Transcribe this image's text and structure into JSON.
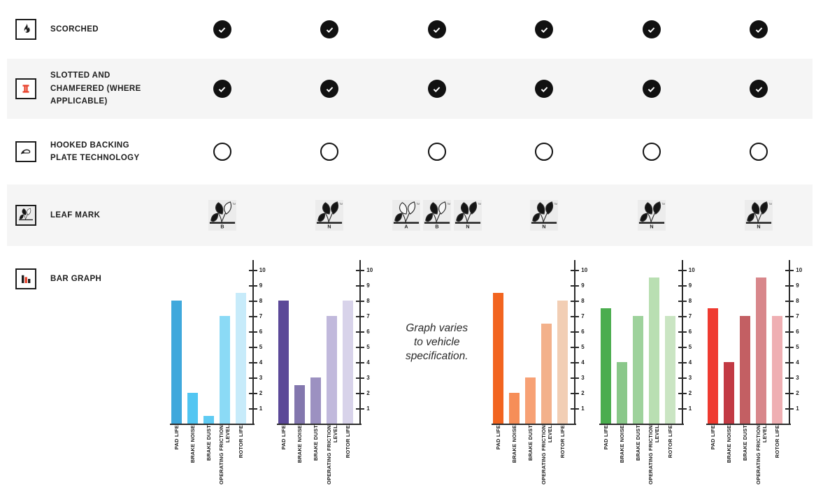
{
  "colors": {
    "row_stripe": "#f5f5f5",
    "ink": "#1d1d1d",
    "badge_black": "#111111",
    "accent_red": "#e8402a",
    "axis": "#2b2b2b",
    "leaf_bg": "#ececec"
  },
  "rows": [
    {
      "id": "scorched",
      "label": "SCORCHED",
      "icon": "flame-icon",
      "cell_type": "check",
      "cells": [
        true,
        true,
        true,
        true,
        true,
        true
      ]
    },
    {
      "id": "slotted",
      "label": "SLOTTED AND CHAMFERED (WHERE APPLICABLE)",
      "icon": "slotted-rotor-icon",
      "cell_type": "check",
      "cells": [
        true,
        true,
        true,
        true,
        true,
        true
      ]
    },
    {
      "id": "hooked",
      "label": "HOOKED BACKING PLATE TECHNOLOGY",
      "icon": "hooked-plate-icon",
      "cell_type": "circle",
      "cells": [
        false,
        false,
        false,
        false,
        false,
        false
      ]
    },
    {
      "id": "leaf-mark",
      "label": "LEAF MARK",
      "icon": "leaf-icon",
      "cell_type": "leaf",
      "cells": [
        [
          "B"
        ],
        [
          "N"
        ],
        [
          "A",
          "B",
          "N"
        ],
        [
          "N"
        ],
        [
          "N"
        ],
        [
          "N"
        ]
      ],
      "tm": "TM"
    },
    {
      "id": "bar-graph",
      "label": "BAR GRAPH",
      "icon": "bar-graph-icon",
      "cell_type": "chart"
    }
  ],
  "chart_data": [
    {
      "type": "bar",
      "palette": "blue",
      "categories": [
        "PAD LIFE",
        "BRAKE NOISE",
        "BRAKE DUST",
        "OPERATING FRICTION LEVEL",
        "ROTOR LIFE"
      ],
      "category_lines": [
        [
          "PAD LIFE"
        ],
        [
          "BRAKE NOISE"
        ],
        [
          "BRAKE DUST"
        ],
        [
          "OPERATING FRICTION",
          "LEVEL"
        ],
        [
          "ROTOR LIFE"
        ]
      ],
      "values": [
        8,
        2,
        0.5,
        7,
        8.5
      ],
      "colors": [
        "#3FA8DC",
        "#52C6F2",
        "#5FCBF3",
        "#8BDAF6",
        "#C7EBFA"
      ],
      "ylim": [
        0,
        10
      ],
      "yticks": [
        "1",
        "2",
        "3",
        "4",
        "5",
        "6",
        "7",
        "8",
        "9",
        "10"
      ],
      "grid": false,
      "legend": "none"
    },
    {
      "type": "bar",
      "palette": "purple",
      "categories": [
        "PAD LIFE",
        "BRAKE NOISE",
        "BRAKE DUST",
        "OPERATING FRICTION LEVEL",
        "ROTOR LIFE"
      ],
      "category_lines": [
        [
          "PAD LIFE"
        ],
        [
          "BRAKE NOISE"
        ],
        [
          "BRAKE DUST"
        ],
        [
          "OPERATING FRICTION",
          "LEVEL"
        ],
        [
          "ROTOR LIFE"
        ]
      ],
      "values": [
        8,
        2.5,
        3,
        7,
        8
      ],
      "colors": [
        "#5B4898",
        "#8377AE",
        "#9C91C1",
        "#C1B9DC",
        "#D8D3EA"
      ],
      "ylim": [
        0,
        10
      ],
      "yticks": [
        "1",
        "2",
        "3",
        "4",
        "5",
        "6",
        "7",
        "8",
        "9",
        "10"
      ],
      "grid": false,
      "legend": "none"
    },
    {
      "type": "note",
      "note_lines": [
        "Graph varies",
        "to vehicle",
        "specification."
      ]
    },
    {
      "type": "bar",
      "palette": "orange",
      "categories": [
        "PAD LIFE",
        "BRAKE NOISE",
        "BRAKE DUST",
        "OPERATING FRICTION LEVEL",
        "ROTOR LIFE"
      ],
      "category_lines": [
        [
          "PAD LIFE"
        ],
        [
          "BRAKE NOISE"
        ],
        [
          "BRAKE DUST"
        ],
        [
          "OPERATING FRICTION",
          "LEVEL"
        ],
        [
          "ROTOR LIFE"
        ]
      ],
      "values": [
        8.5,
        2,
        3,
        6.5,
        8
      ],
      "colors": [
        "#F2641F",
        "#F68E58",
        "#F7A175",
        "#F3B18B",
        "#F2CEB4"
      ],
      "ylim": [
        0,
        10
      ],
      "yticks": [
        "1",
        "2",
        "3",
        "4",
        "5",
        "6",
        "7",
        "8",
        "9",
        "10"
      ],
      "grid": false,
      "legend": "none"
    },
    {
      "type": "bar",
      "palette": "green",
      "categories": [
        "PAD LIFE",
        "BRAKE NOISE",
        "BRAKE DUST",
        "OPERATING FRICTION LEVEL",
        "ROTOR LIFE"
      ],
      "category_lines": [
        [
          "PAD LIFE"
        ],
        [
          "BRAKE NOISE"
        ],
        [
          "BRAKE DUST"
        ],
        [
          "OPERATING FRICTION",
          "LEVEL"
        ],
        [
          "ROTOR LIFE"
        ]
      ],
      "values": [
        7.5,
        4,
        7,
        9.5,
        7
      ],
      "colors": [
        "#4BAD4F",
        "#8AC88A",
        "#9ED29C",
        "#B9DFB2",
        "#CAE5C3"
      ],
      "ylim": [
        0,
        10
      ],
      "yticks": [
        "1",
        "2",
        "3",
        "4",
        "5",
        "6",
        "7",
        "8",
        "9",
        "10"
      ],
      "grid": false,
      "legend": "none"
    },
    {
      "type": "bar",
      "palette": "red",
      "categories": [
        "PAD LIFE",
        "BRAKE NOISE",
        "BRAKE DUST",
        "OPERATING FRICTION LEVEL",
        "ROTOR LIFE"
      ],
      "category_lines": [
        [
          "PAD LIFE"
        ],
        [
          "BRAKE NOISE"
        ],
        [
          "BRAKE DUST"
        ],
        [
          "OPERATING FRICTION",
          "LEVEL"
        ],
        [
          "ROTOR LIFE"
        ]
      ],
      "values": [
        7.5,
        4,
        7,
        9.5,
        7
      ],
      "colors": [
        "#EF3A30",
        "#C23A44",
        "#C35F63",
        "#D8878B",
        "#EFAFB3"
      ],
      "ylim": [
        0,
        10
      ],
      "yticks": [
        "1",
        "2",
        "3",
        "4",
        "5",
        "6",
        "7",
        "8",
        "9",
        "10"
      ],
      "grid": false,
      "legend": "none"
    }
  ]
}
